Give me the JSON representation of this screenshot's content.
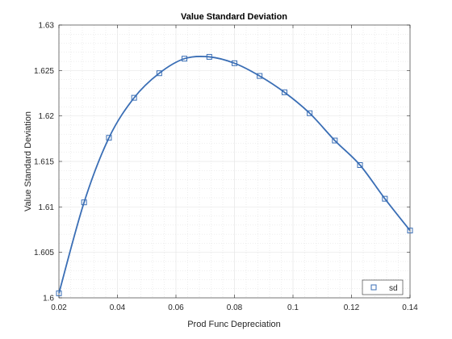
{
  "chart_data": {
    "type": "line",
    "title": "Value Standard Deviation",
    "xlabel": "Prod Func Depreciation",
    "ylabel": "Value Standard Deviation",
    "xlim": [
      0.02,
      0.14
    ],
    "ylim": [
      1.6,
      1.63
    ],
    "xticks": [
      0.02,
      0.04,
      0.06,
      0.08,
      0.1,
      0.12,
      0.14
    ],
    "xtick_labels": [
      "0.02",
      "0.04",
      "0.06",
      "0.08",
      "0.1",
      "0.12",
      "0.14"
    ],
    "yticks": [
      1.6,
      1.605,
      1.61,
      1.615,
      1.62,
      1.625,
      1.63
    ],
    "ytick_labels": [
      "1.6",
      "1.605",
      "1.61",
      "1.615",
      "1.62",
      "1.625",
      "1.63"
    ],
    "grid": true,
    "minor_grid": true,
    "legend_position": "bottom-right",
    "marker": "square",
    "series": [
      {
        "name": "sd",
        "color": "#3a6eb5",
        "x": [
          0.02,
          0.0286,
          0.0371,
          0.0457,
          0.0543,
          0.0629,
          0.0714,
          0.08,
          0.0886,
          0.0971,
          0.1057,
          0.1143,
          0.1229,
          0.1314,
          0.14
        ],
        "y": [
          1.6005,
          1.6105,
          1.6176,
          1.622,
          1.6247,
          1.6263,
          1.6265,
          1.6258,
          1.6244,
          1.6226,
          1.6203,
          1.6173,
          1.6146,
          1.6109,
          1.6074
        ]
      }
    ]
  }
}
